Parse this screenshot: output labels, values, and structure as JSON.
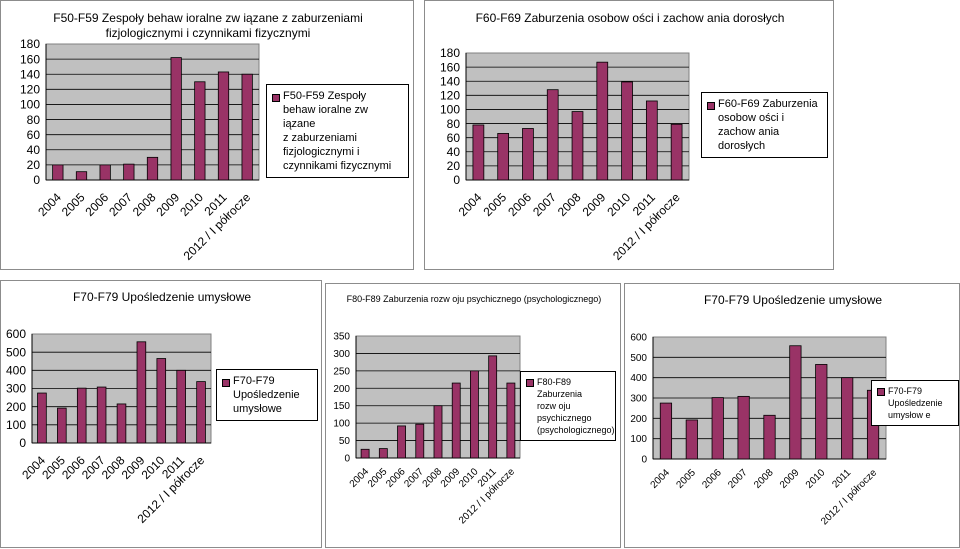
{
  "chart_data": [
    {
      "type": "bar",
      "title": "F50-F59 Zespoły behaw ioralne zw iązane z zaburzeniami fizjologicznymi i czynnikami fizycznymi",
      "title_lines": [
        "F50-F59 Zespoły behaw ioralne zw iązane z zaburzeniami",
        "fizjologicznymi i czynnikami fizycznymi"
      ],
      "categories": [
        "2004",
        "2005",
        "2006",
        "2007",
        "2008",
        "2009",
        "2010",
        "2011",
        "2012 / I półrocze"
      ],
      "series": [
        {
          "name": "F50-F59 Zespoły behaw ioralne zw iązane z zaburzeniami fizjologicznymi i czynnikami fizycznymi",
          "values": [
            20,
            11,
            20,
            21,
            30,
            162,
            130,
            143,
            140
          ]
        }
      ],
      "legend_lines": [
        "F50-F59 Zespoły",
        "behaw ioralne zw iązane",
        "z zaburzeniami",
        "fizjologicznymi i",
        "czynnikami fizycznymi"
      ],
      "y_ticks": [
        "0",
        "20",
        "40",
        "60",
        "80",
        "100",
        "120",
        "140",
        "160",
        "180"
      ],
      "ylim": [
        0,
        180
      ],
      "grid": true,
      "legend_position": "right",
      "xlabel": "",
      "ylabel": ""
    },
    {
      "type": "bar",
      "title": "F60-F69 Zaburzenia osobow ości i zachow ania dorosłych",
      "title_lines": [
        "F60-F69 Zaburzenia osobow ości i zachow ania dorosłych"
      ],
      "categories": [
        "2004",
        "2005",
        "2006",
        "2007",
        "2008",
        "2009",
        "2010",
        "2011",
        "2012 / I półrocze"
      ],
      "series": [
        {
          "name": "F60-F69 Zaburzenia osobow ości i zachow ania dorosłych",
          "values": [
            78,
            66,
            73,
            128,
            97,
            167,
            139,
            112,
            79
          ]
        }
      ],
      "legend_lines": [
        "F60-F69 Zaburzenia",
        "osobow ości i",
        "zachow ania dorosłych"
      ],
      "y_ticks": [
        "0",
        "20",
        "40",
        "60",
        "80",
        "100",
        "120",
        "140",
        "160",
        "180"
      ],
      "ylim": [
        0,
        180
      ],
      "grid": true,
      "legend_position": "right",
      "xlabel": "",
      "ylabel": ""
    },
    {
      "type": "bar",
      "title": "F70-F79 Upośledzenie umysłowe",
      "title_lines": [
        "F70-F79 Upośledzenie umysłowe"
      ],
      "categories": [
        "2004",
        "2005",
        "2006",
        "2007",
        "2008",
        "2009",
        "2010",
        "2011",
        "2012 / I półrocze"
      ],
      "series": [
        {
          "name": "F70-F79 Upośledzenie umysłowe",
          "values": [
            275,
            192,
            302,
            308,
            215,
            557,
            465,
            400,
            338
          ]
        }
      ],
      "legend_lines": [
        "F70-F79 Upośledzenie",
        "umysłowe"
      ],
      "y_ticks": [
        "0",
        "100",
        "200",
        "300",
        "400",
        "500",
        "600"
      ],
      "ylim": [
        0,
        600
      ],
      "grid": true,
      "legend_position": "right",
      "xlabel": "",
      "ylabel": ""
    },
    {
      "type": "bar",
      "title": "F80-F89 Zaburzenia rozw oju psychicznego (psychologicznego)",
      "title_lines": [
        "F80-F89 Zaburzenia rozw oju psychicznego (psychologicznego)"
      ],
      "categories": [
        "2004",
        "2005",
        "2006",
        "2007",
        "2008",
        "2009",
        "2010",
        "2011",
        "2012 / I półrocze"
      ],
      "series": [
        {
          "name": "F80-F89 Zaburzenia rozw oju psychicznego (psychologicznego)",
          "values": [
            25,
            27,
            92,
            97,
            150,
            215,
            250,
            293,
            215
          ]
        }
      ],
      "legend_lines": [
        "F80-F89 Zaburzenia",
        "rozw oju psychicznego",
        "(psychologicznego)"
      ],
      "y_ticks": [
        "0",
        "50",
        "100",
        "150",
        "200",
        "250",
        "300",
        "350"
      ],
      "ylim": [
        0,
        350
      ],
      "grid": true,
      "legend_position": "right",
      "xlabel": "",
      "ylabel": ""
    },
    {
      "type": "bar",
      "title": "F70-F79 Upośledzenie umysłowe",
      "title_lines": [
        "F70-F79 Upośledzenie umysłowe"
      ],
      "categories": [
        "2004",
        "2005",
        "2006",
        "2007",
        "2008",
        "2009",
        "2010",
        "2011",
        "2012 / I półrocze"
      ],
      "series": [
        {
          "name": "F70-F79 Upośledzenie umysłowe",
          "values": [
            275,
            192,
            302,
            308,
            215,
            557,
            465,
            400,
            338
          ]
        }
      ],
      "legend_lines": [
        "F70-F79 Upośledzenie",
        "umysłow e"
      ],
      "y_ticks": [
        "0",
        "100",
        "200",
        "300",
        "400",
        "500",
        "600"
      ],
      "ylim": [
        0,
        600
      ],
      "grid": true,
      "legend_position": "right",
      "xlabel": "",
      "ylabel": ""
    }
  ],
  "colors": {
    "bar": "#993366",
    "plot_background": "#c0c0c0",
    "panel_border": "#8c8c8c"
  }
}
